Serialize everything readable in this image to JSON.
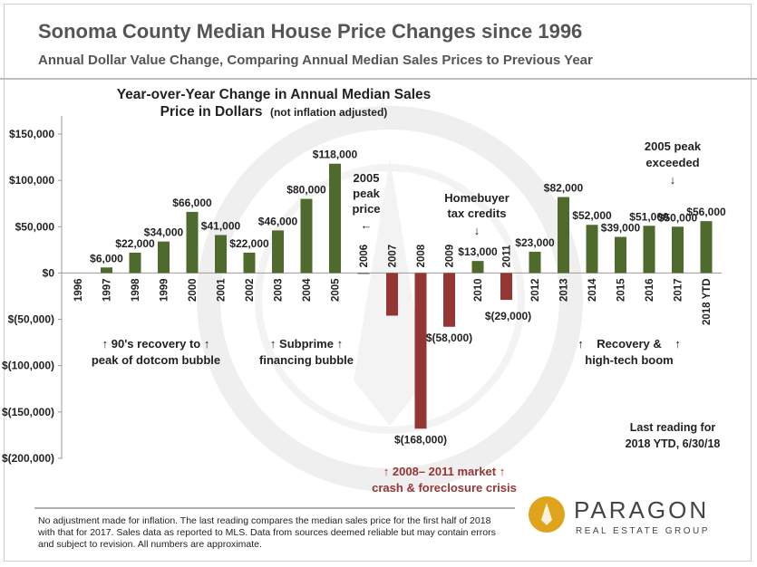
{
  "header": {
    "title": "Sonoma County Median House Price Changes since 1996",
    "subtitle": "Annual Dollar Value Change, Comparing Annual Median Sales Prices to Previous Year"
  },
  "chart_data": {
    "type": "bar",
    "title": "Year-over-Year Change in Annual Median Sales Price in Dollars (not inflation adjusted)",
    "title_lines": [
      "Year-over-Year Change in Annual Median Sales",
      "Price in Dollars",
      "(not inflation adjusted)"
    ],
    "categories": [
      "1996",
      "1997",
      "1998",
      "1999",
      "2000",
      "2001",
      "2002",
      "2003",
      "2004",
      "2005",
      "2006",
      "2007",
      "2008",
      "2009",
      "2010",
      "2011",
      "2012",
      "2013",
      "2014",
      "2015",
      "2016",
      "2017",
      "2018 YTD"
    ],
    "values": [
      0,
      6000,
      22000,
      34000,
      66000,
      41000,
      22000,
      46000,
      80000,
      118000,
      -1000,
      -46000,
      -168000,
      -58000,
      13000,
      -29000,
      23000,
      82000,
      52000,
      39000,
      51000,
      50000,
      56000
    ],
    "data_labels": [
      "",
      "$6,000",
      "$22,000",
      "$34,000",
      "$66,000",
      "$41,000",
      "$22,000",
      "$46,000",
      "$80,000",
      "$118,000",
      "",
      "",
      "$(168,000)",
      "$(58,000)",
      "$13,000",
      "$(29,000)",
      "$23,000",
      "$82,000",
      "$52,000",
      "$39,000",
      "$51,000",
      "$50,000",
      "$56,000"
    ],
    "ylim": [
      -200000,
      150000
    ],
    "yticks": [
      150000,
      100000,
      50000,
      0,
      -50000,
      -100000,
      -150000,
      -200000
    ],
    "ytick_labels": [
      "$150,000",
      "$100,000",
      "$50,000",
      "$0",
      "$(50,000)",
      "$(100,000)",
      "$(150,000)",
      "$(200,000)"
    ],
    "grid": false,
    "colors": {
      "positive": "#4e6b2d",
      "negative": "#943634",
      "text": "#222222",
      "crisis_text": "#943634"
    },
    "annotations": {
      "dotcom": [
        "↑ 90's recovery to ↑",
        "peak of dotcom bubble"
      ],
      "subprime": [
        "↑ Subprime ↑",
        "financing bubble"
      ],
      "peak2005": [
        "2005",
        "peak",
        "price",
        "←"
      ],
      "credits": [
        "Homebuyer",
        "tax credits",
        "↓"
      ],
      "exceeded": [
        "2005 peak",
        "exceeded",
        "↓"
      ],
      "recovery": [
        "↑    Recovery &    ↑",
        "high-tech boom"
      ],
      "last": [
        "Last reading for",
        "2018 YTD, 6/30/18"
      ],
      "crisis": [
        "↑ 2008– 2011 market ↑",
        "crash & foreclosure crisis"
      ]
    }
  },
  "footnote": "No adjustment made for inflation. The last reading compares the median sales price for the first half of 2018 with that for 2017. Sales data as reported to MLS. Data from sources deemed reliable but may contain errors and subject to revision. All numbers are approximate.",
  "logo": {
    "name": "PARAGON",
    "tagline": "REAL ESTATE GROUP"
  }
}
